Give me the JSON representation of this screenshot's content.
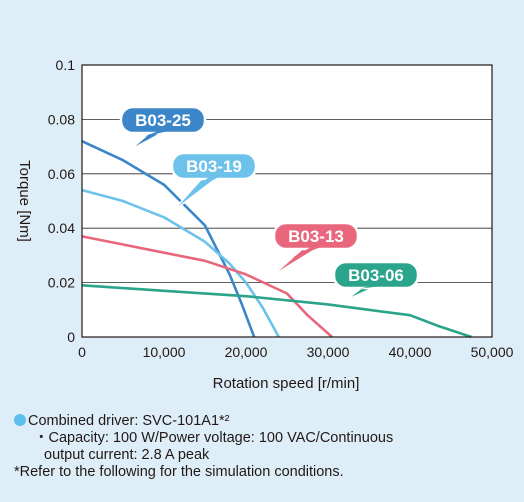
{
  "chart_data": {
    "type": "line",
    "xlabel": "Rotation speed [r/min]",
    "ylabel": "Torque [Nm]",
    "xlim": [
      0,
      50000
    ],
    "ylim": [
      0,
      0.1
    ],
    "x_ticks": [
      "0",
      "10,000",
      "20,000",
      "30,000",
      "40,000",
      "50,000"
    ],
    "y_ticks": [
      "0",
      "0.02",
      "0.04",
      "0.06",
      "0.08",
      "0.1"
    ],
    "grid": "horizontal",
    "series": [
      {
        "name": "B03-25",
        "color": "#3a86c8",
        "points": [
          [
            0,
            0.072
          ],
          [
            5000,
            0.065
          ],
          [
            10000,
            0.056
          ],
          [
            15000,
            0.041
          ],
          [
            18000,
            0.023
          ],
          [
            19500,
            0.012
          ],
          [
            21000,
            0.0
          ]
        ]
      },
      {
        "name": "B03-19",
        "color": "#6cc2ea",
        "points": [
          [
            0,
            0.054
          ],
          [
            5000,
            0.05
          ],
          [
            10000,
            0.044
          ],
          [
            15000,
            0.035
          ],
          [
            18000,
            0.027
          ],
          [
            20000,
            0.02
          ],
          [
            22000,
            0.011
          ],
          [
            24000,
            0.0
          ]
        ]
      },
      {
        "name": "B03-13",
        "color": "#e8677d",
        "points": [
          [
            0,
            0.037
          ],
          [
            5000,
            0.034
          ],
          [
            10000,
            0.031
          ],
          [
            15000,
            0.028
          ],
          [
            20000,
            0.023
          ],
          [
            25000,
            0.016
          ],
          [
            27500,
            0.008
          ],
          [
            30500,
            0.0
          ]
        ]
      },
      {
        "name": "B03-06",
        "color": "#2aa48a",
        "points": [
          [
            0,
            0.019
          ],
          [
            10000,
            0.017
          ],
          [
            20000,
            0.015
          ],
          [
            30000,
            0.012
          ],
          [
            40000,
            0.008
          ],
          [
            43500,
            0.004
          ],
          [
            47500,
            0.0
          ]
        ]
      }
    ]
  },
  "notes": {
    "driver": "Combined driver: SVC-101A1*²",
    "bullet": "・",
    "capacity_line1": "Capacity: 100 W/Power voltage: 100 VAC/Continuous",
    "capacity_line2": "output current: 2.8 A peak",
    "refer": "*Refer to the following for the simulation conditions."
  }
}
